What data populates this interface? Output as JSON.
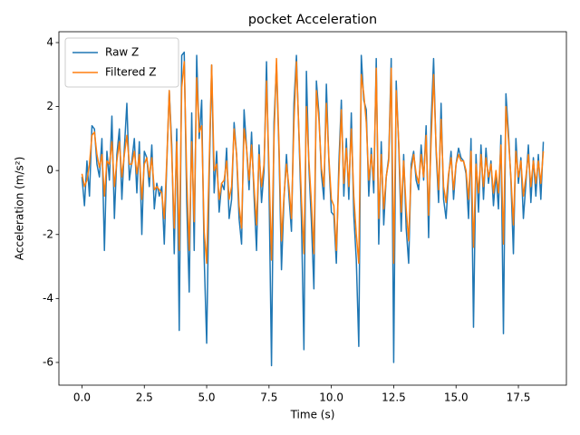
{
  "chart_data": {
    "type": "line",
    "title": "pocket Acceleration",
    "x_label": "Time (s)",
    "y_label": "Acceleration (m/s²)",
    "x": [
      0,
      0.1,
      0.2,
      0.3,
      0.4,
      0.5,
      0.6,
      0.7,
      0.8,
      0.9,
      1,
      1.1,
      1.2,
      1.3,
      1.4,
      1.5,
      1.6,
      1.7,
      1.8,
      1.9,
      2,
      2.1,
      2.2,
      2.3,
      2.4,
      2.5,
      2.6,
      2.7,
      2.8,
      2.9,
      3,
      3.1,
      3.2,
      3.3,
      3.4,
      3.5,
      3.6,
      3.7,
      3.8,
      3.9,
      4,
      4.1,
      4.2,
      4.3,
      4.4,
      4.5,
      4.6,
      4.7,
      4.8,
      4.9,
      5,
      5.1,
      5.2,
      5.3,
      5.4,
      5.5,
      5.6,
      5.7,
      5.8,
      5.9,
      6,
      6.1,
      6.2,
      6.3,
      6.4,
      6.5,
      6.6,
      6.7,
      6.8,
      6.9,
      7,
      7.1,
      7.2,
      7.3,
      7.4,
      7.5,
      7.6,
      7.7,
      7.8,
      7.9,
      8,
      8.1,
      8.2,
      8.3,
      8.4,
      8.5,
      8.6,
      8.7,
      8.8,
      8.9,
      9,
      9.1,
      9.2,
      9.3,
      9.4,
      9.5,
      9.6,
      9.7,
      9.8,
      9.9,
      10,
      10.1,
      10.2,
      10.3,
      10.4,
      10.5,
      10.6,
      10.7,
      10.8,
      10.9,
      11,
      11.1,
      11.2,
      11.3,
      11.4,
      11.5,
      11.6,
      11.7,
      11.8,
      11.9,
      12,
      12.1,
      12.2,
      12.3,
      12.4,
      12.5,
      12.6,
      12.7,
      12.8,
      12.9,
      13,
      13.1,
      13.2,
      13.3,
      13.4,
      13.5,
      13.6,
      13.7,
      13.8,
      13.9,
      14,
      14.1,
      14.2,
      14.3,
      14.4,
      14.5,
      14.6,
      14.7,
      14.8,
      14.9,
      15,
      15.1,
      15.2,
      15.3,
      15.4,
      15.5,
      15.6,
      15.7,
      15.8,
      15.9,
      16,
      16.1,
      16.2,
      16.3,
      16.4,
      16.5,
      16.6,
      16.7,
      16.8,
      16.9,
      17,
      17.1,
      17.2,
      17.3,
      17.4,
      17.5,
      17.6,
      17.7,
      17.8,
      17.9,
      18,
      18.1,
      18.2,
      18.3,
      18.4,
      18.5
    ],
    "series": [
      {
        "name": "Raw Z",
        "color": "#1f77b4",
        "values": [
          -0.2,
          -1.1,
          0.3,
          -0.8,
          1.4,
          1.3,
          0.2,
          -0.2,
          1.0,
          -2.5,
          0.6,
          -0.3,
          1.7,
          -1.5,
          0.5,
          1.3,
          -0.9,
          0.7,
          2.1,
          -0.3,
          0.3,
          1.0,
          -0.7,
          0.9,
          -2.0,
          0.6,
          0.4,
          -0.5,
          0.8,
          -1.2,
          -0.4,
          -0.8,
          -0.5,
          -2.3,
          0.2,
          2.5,
          0.8,
          -2.6,
          1.3,
          -5.0,
          3.6,
          3.7,
          -1.0,
          -3.8,
          1.8,
          -2.5,
          3.6,
          1.0,
          2.2,
          -2.7,
          -5.4,
          -0.3,
          3.3,
          -0.7,
          0.6,
          -1.3,
          -0.4,
          -0.6,
          0.7,
          -1.5,
          -0.9,
          1.5,
          0.5,
          -1.5,
          -2.3,
          1.9,
          0.7,
          -0.6,
          1.2,
          -0.8,
          -2.5,
          0.8,
          -1.0,
          0.0,
          3.4,
          -0.5,
          -6.1,
          1.5,
          3.3,
          0.6,
          -3.1,
          -0.9,
          0.5,
          -0.8,
          -1.9,
          2.1,
          3.6,
          1.1,
          -1.5,
          -5.6,
          3.1,
          0.1,
          -1.6,
          -3.7,
          2.8,
          1.8,
          -0.1,
          -0.9,
          2.7,
          0.3,
          -1.3,
          -1.4,
          -2.9,
          0.2,
          2.2,
          -0.8,
          1.0,
          -0.9,
          1.8,
          -1.4,
          -2.8,
          -5.5,
          3.6,
          2.2,
          1.9,
          -0.8,
          0.7,
          -0.7,
          3.5,
          -2.3,
          0.9,
          -1.7,
          -0.2,
          0.4,
          3.5,
          -6.0,
          2.8,
          0.8,
          -1.9,
          0.5,
          -1.8,
          -2.9,
          0.2,
          0.6,
          -0.3,
          -0.6,
          0.8,
          -0.3,
          1.4,
          -2.1,
          1.5,
          3.5,
          0.6,
          -1.0,
          2.1,
          -0.9,
          -1.5,
          -0.2,
          0.6,
          -0.9,
          0.2,
          0.7,
          0.4,
          0.3,
          -0.1,
          -1.5,
          1.0,
          -4.9,
          0.5,
          -1.3,
          0.8,
          -0.9,
          0.7,
          -0.4,
          0.3,
          -1.1,
          -0.1,
          -1.2,
          1.1,
          -5.1,
          2.4,
          1.2,
          -0.3,
          -2.6,
          1.0,
          -0.4,
          0.4,
          -1.5,
          -0.4,
          0.8,
          -1.0,
          0.4,
          -0.8,
          0.5,
          -0.9,
          0.9
        ]
      },
      {
        "name": "Filtered Z",
        "color": "#ff7f0e",
        "values": [
          -0.1,
          -0.5,
          -0.3,
          0.2,
          1.1,
          1.2,
          0.5,
          0.1,
          0.5,
          -0.8,
          0.3,
          0.2,
          0.9,
          -0.5,
          0.3,
          0.9,
          -0.2,
          0.5,
          1.1,
          0.2,
          0.2,
          0.6,
          -0.1,
          0.5,
          -0.9,
          0.2,
          0.4,
          -0.2,
          0.4,
          -0.6,
          -0.5,
          -0.6,
          -0.7,
          -1.5,
          0.3,
          2.5,
          0.5,
          -1.8,
          0.9,
          -2.5,
          2.6,
          3.4,
          -0.2,
          -2.5,
          0.9,
          -1.6,
          2.9,
          1.2,
          1.4,
          -1.9,
          -2.9,
          0.2,
          3.3,
          0.0,
          0.2,
          -0.9,
          -0.4,
          -0.3,
          0.3,
          -0.9,
          -0.5,
          1.3,
          0.5,
          -1.1,
          -1.8,
          1.3,
          0.7,
          -0.3,
          0.8,
          -0.5,
          -1.7,
          0.5,
          -0.5,
          0.2,
          2.8,
          0.1,
          -2.8,
          1.0,
          3.5,
          0.8,
          -2.2,
          -0.8,
          0.2,
          -0.5,
          -1.5,
          1.5,
          3.4,
          1.2,
          -0.9,
          -2.6,
          2.0,
          0.3,
          -1.0,
          -2.6,
          2.5,
          1.6,
          0.1,
          -0.5,
          2.1,
          0.4,
          -0.9,
          -1.1,
          -2.5,
          -0.2,
          1.9,
          -0.4,
          0.7,
          -0.5,
          1.3,
          -0.8,
          -2.0,
          -2.9,
          3.0,
          2.4,
          1.5,
          -0.3,
          0.5,
          -0.3,
          3.2,
          -1.5,
          0.5,
          -1.2,
          -0.2,
          0.3,
          3.2,
          -2.9,
          2.5,
          0.9,
          -1.3,
          0.3,
          -1.2,
          -2.2,
          0.0,
          0.5,
          -0.1,
          -0.4,
          0.5,
          -0.2,
          1.1,
          -1.4,
          0.9,
          3.0,
          0.7,
          -0.6,
          1.6,
          -0.5,
          -1.0,
          -0.1,
          0.4,
          -0.6,
          0.2,
          0.5,
          0.3,
          0.3,
          0.0,
          -0.9,
          0.6,
          -2.4,
          0.2,
          -0.7,
          0.5,
          -0.5,
          0.4,
          -0.2,
          0.2,
          -0.7,
          0.0,
          -0.7,
          0.8,
          -2.3,
          2.0,
          1.0,
          -0.2,
          -1.7,
          0.6,
          -0.2,
          0.3,
          -0.8,
          -0.2,
          0.5,
          -0.5,
          0.3,
          -0.4,
          0.3,
          -0.4,
          0.6
        ]
      }
    ],
    "xlim": [
      -0.925,
      19.425
    ],
    "ylim": [
      -6.71,
      4.34
    ],
    "xticks": [
      {
        "value": 0,
        "label": "0.0"
      },
      2.5,
      {
        "value": 5,
        "label": "5.0"
      },
      7.5,
      {
        "value": 10,
        "label": "10.0"
      },
      12.5,
      {
        "value": 15,
        "label": "15.0"
      },
      17.5
    ],
    "yticks": [
      -6,
      -4,
      -2,
      0,
      2,
      4
    ],
    "legend": "upper left",
    "grid": false
  }
}
